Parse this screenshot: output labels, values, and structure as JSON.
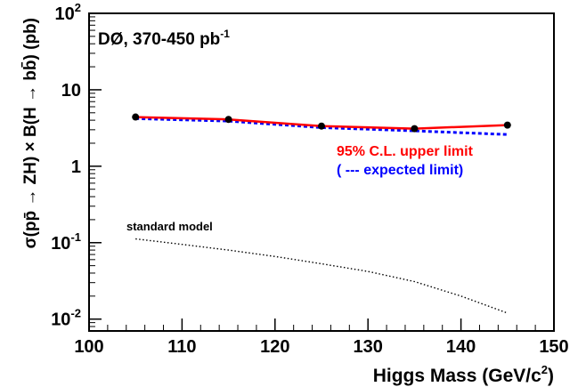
{
  "chart_data": {
    "type": "line",
    "title": "DØ, 370-450 pb",
    "title_sup": "-1",
    "xlabel": "Higgs Mass (GeV/c",
    "xlabel_sup": "2",
    "xlabel_end": ")",
    "ylabel": "σ(pp̄ → ZH) × B(H → bb̄) (pb)",
    "x_log": false,
    "y_log": true,
    "xlim": [
      100,
      150
    ],
    "ylim": [
      0.007,
      100
    ],
    "x_ticks": [
      "100",
      "110",
      "120",
      "130",
      "140",
      "150"
    ],
    "y_ticks": [
      {
        "base": "10",
        "exp": "-2",
        "value": 0.01
      },
      {
        "base": "10",
        "exp": "-1",
        "value": 0.1
      },
      {
        "base": "1",
        "exp": "",
        "value": 1
      },
      {
        "base": "10",
        "exp": "",
        "value": 10
      },
      {
        "base": "10",
        "exp": "2",
        "value": 100
      }
    ],
    "grid": false,
    "series": [
      {
        "name": "95% C.L. upper limit",
        "color": "#ff0000",
        "style": "solid",
        "markers": true,
        "x": [
          105,
          115,
          125,
          135,
          145
        ],
        "y": [
          4.4,
          4.1,
          3.35,
          3.1,
          3.45
        ]
      },
      {
        "name": "( --- expected limit)",
        "color": "#0000ff",
        "style": "dashed",
        "markers": false,
        "x": [
          105,
          115,
          125,
          135,
          145
        ],
        "y": [
          4.2,
          3.9,
          3.2,
          2.9,
          2.6
        ]
      },
      {
        "name": "standard model",
        "color": "#000000",
        "style": "dotted",
        "markers": false,
        "x": [
          105,
          110,
          115,
          120,
          125,
          130,
          135,
          140,
          145
        ],
        "y": [
          0.112,
          0.095,
          0.08,
          0.066,
          0.053,
          0.042,
          0.031,
          0.02,
          0.012
        ]
      }
    ],
    "legend_position": "inside, right of center"
  }
}
